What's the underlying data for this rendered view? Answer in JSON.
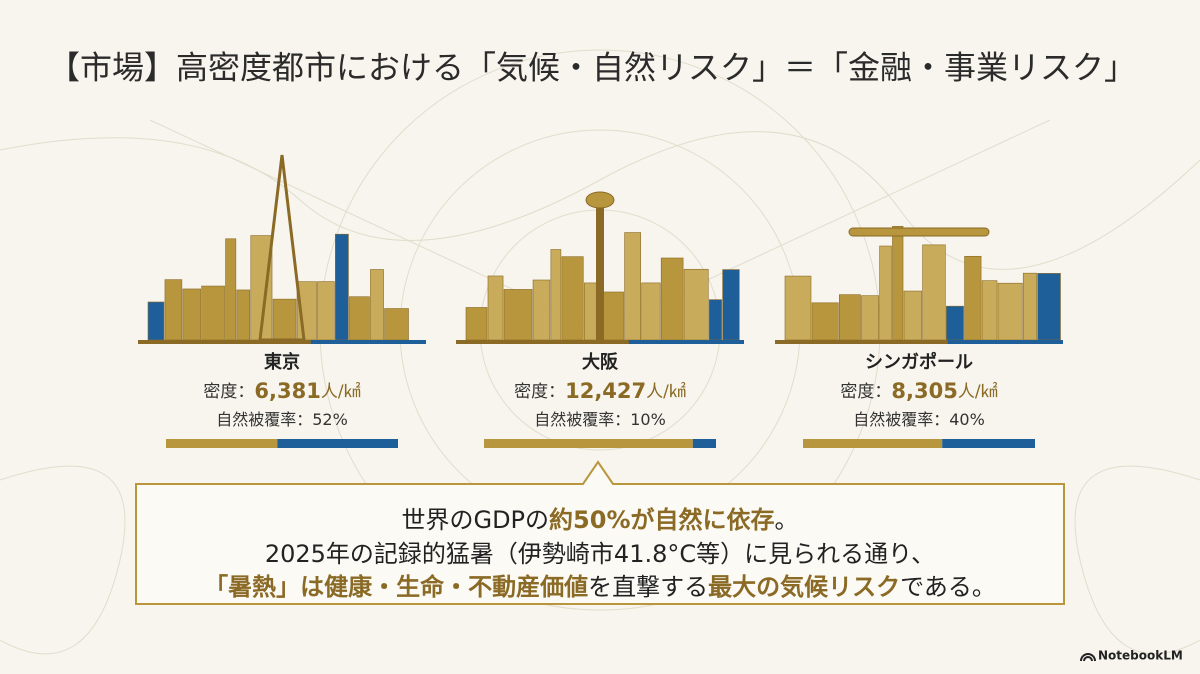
{
  "title": "【市場】高密度都市における「気候・自然リスク」＝「金融・事業リスク」",
  "cities": [
    {
      "name": "東京",
      "density_label": "密度：",
      "density": "6,381",
      "density_unit": "人/㎢",
      "coverage_label": "自然被覆率：",
      "coverage_text": "52%",
      "coverage": 52
    },
    {
      "name": "大阪",
      "density_label": "密度：",
      "density": "12,427",
      "density_unit": "人/㎢",
      "coverage_label": "自然被覆率：",
      "coverage_text": "10%",
      "coverage": 10
    },
    {
      "name": "シンガポール",
      "density_label": "密度：",
      "density": "8,305",
      "density_unit": "人/㎢",
      "coverage_label": "自然被覆率：",
      "coverage_text": "40%",
      "coverage": 40
    }
  ],
  "message": {
    "lines": [
      [
        {
          "text": "世界のGDPの",
          "em": false
        },
        {
          "text": "約50%が自然に依存",
          "em": true
        },
        {
          "text": "。",
          "em": false
        }
      ],
      [
        {
          "text": "2025年の記録的猛暑（伊勢崎市41.8°C等）に見られる通り、",
          "em": false
        }
      ],
      [
        {
          "text": "「暑熱」は健康・生命・不動産価値",
          "em": true
        },
        {
          "text": "を直撃する",
          "em": false
        },
        {
          "text": "最大の気候リスク",
          "em": true
        },
        {
          "text": "である。",
          "em": false
        }
      ]
    ]
  },
  "footer": "NotebookLM"
}
